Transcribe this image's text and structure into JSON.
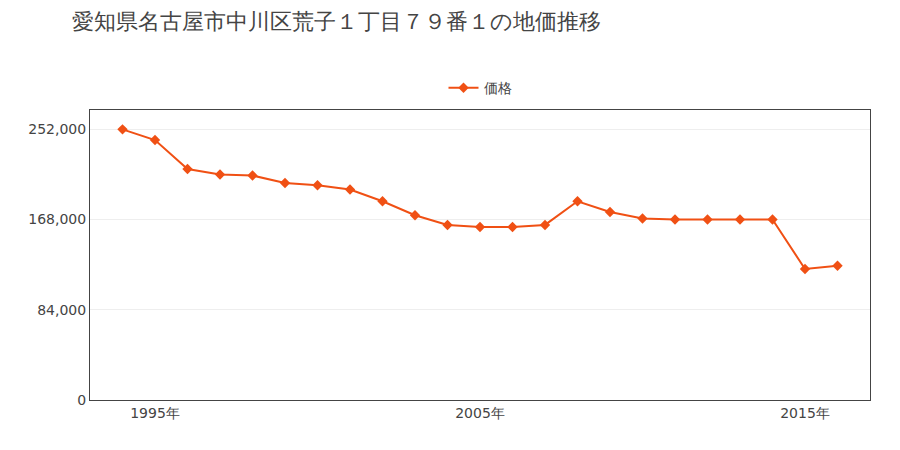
{
  "chart_data": {
    "type": "line",
    "title": "愛知県名古屋市中川区荒子１丁目７９番１の地価推移",
    "x": [
      1994,
      1995,
      1996,
      1997,
      1998,
      1999,
      2000,
      2001,
      2002,
      2003,
      2004,
      2005,
      2006,
      2007,
      2008,
      2009,
      2010,
      2011,
      2012,
      2013,
      2014,
      2015,
      2016
    ],
    "series": [
      {
        "name": "価格",
        "color": "#f05014",
        "marker": "diamond",
        "values": [
          252000,
          242000,
          215000,
          210000,
          209000,
          202000,
          200000,
          196000,
          185000,
          172000,
          163000,
          161000,
          161000,
          163000,
          185000,
          175000,
          169000,
          168000,
          168000,
          168000,
          168000,
          122000,
          125000
        ]
      }
    ],
    "xlim": [
      1993,
      2017
    ],
    "xticks": [
      {
        "value": 1995,
        "label": "1995年"
      },
      {
        "value": 2005,
        "label": "2005年"
      },
      {
        "value": 2015,
        "label": "2015年"
      }
    ],
    "ylim": [
      0,
      270000
    ],
    "yticks": [
      0,
      {
        "value": 84000,
        "label": "84,000"
      },
      {
        "value": 168000,
        "label": "168,000"
      },
      {
        "value": 252000,
        "label": "252,000"
      }
    ],
    "grid": "y",
    "legend": "top"
  }
}
